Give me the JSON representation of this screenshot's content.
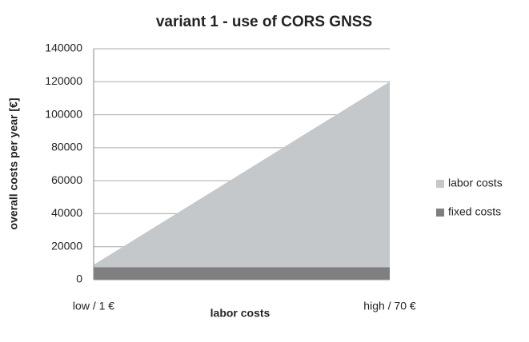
{
  "chart_data": {
    "type": "stacked_area",
    "title": "variant 1 - use of CORS GNSS",
    "x_label": "labor costs",
    "y_label": "overall costs per year [€]",
    "categories": [
      "low / 1 €",
      "high / 70 €"
    ],
    "series": [
      {
        "name": "fixed costs",
        "color": "#7f7f81",
        "values": [
          7500,
          7500
        ]
      },
      {
        "name": "labor costs",
        "color": "#c4c8cb",
        "values": [
          1500,
          112500
        ]
      }
    ],
    "ylim": [
      0,
      140000
    ],
    "yticks": [
      0,
      20000,
      40000,
      60000,
      80000,
      100000,
      120000,
      140000
    ],
    "grid": true,
    "legend": "right"
  }
}
